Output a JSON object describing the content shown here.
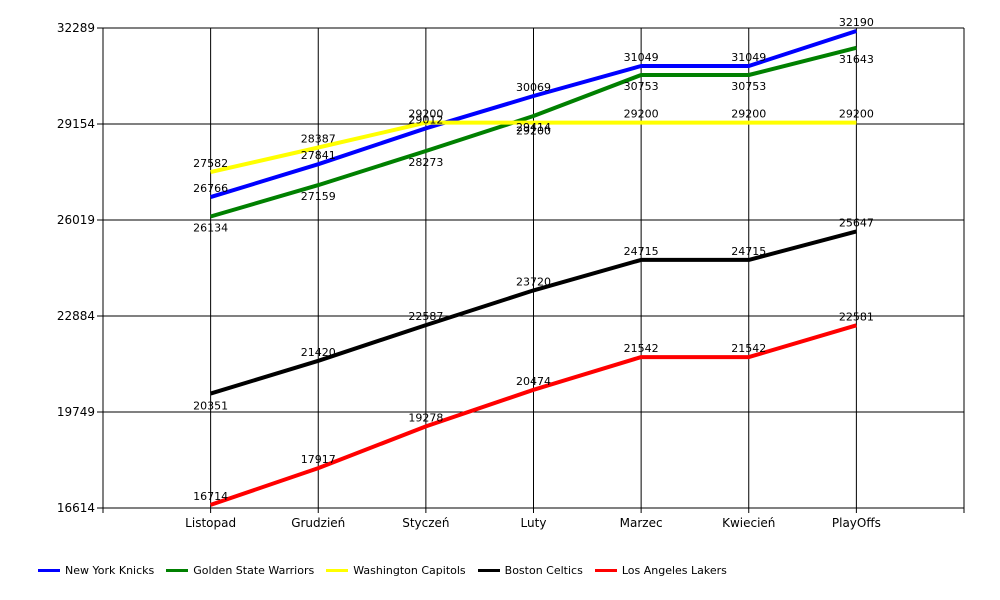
{
  "chart_data": {
    "type": "line",
    "categories": [
      "Listopad",
      "Grudzień",
      "Styczeń",
      "Luty",
      "Marzec",
      "Kwiecień",
      "PlayOffs"
    ],
    "y_ticks": [
      "16614",
      "19749",
      "22884",
      "26019",
      "29154",
      "32289"
    ],
    "ylim": [
      16614,
      32289
    ],
    "grid": true,
    "legend_position": "bottom-left",
    "series": [
      {
        "name": "New York Knicks",
        "color": "#0000ff",
        "values": [
          26766,
          27841,
          29012,
          30069,
          31049,
          31049,
          32190
        ],
        "labels": [
          "26766",
          "27841",
          "29012",
          "30069",
          "31049",
          "31049",
          "32190"
        ]
      },
      {
        "name": "Golden State Warriors",
        "color": "#008000",
        "values": [
          26134,
          27159,
          28273,
          29414,
          30753,
          30753,
          31643
        ],
        "labels": [
          "26134",
          "27159",
          "28273",
          "29414",
          "30753",
          "30753",
          "31643"
        ]
      },
      {
        "name": "Washington Capitols",
        "color": "#ffff00",
        "values": [
          27582,
          28387,
          29200,
          29200,
          29200,
          29200,
          29200
        ],
        "labels": [
          "27582",
          "28387",
          "29200",
          "29200",
          "29200",
          "29200",
          "29200"
        ]
      },
      {
        "name": "Boston Celtics",
        "color": "#000000",
        "values": [
          20351,
          21420,
          22587,
          23720,
          24715,
          24715,
          25647
        ],
        "labels": [
          "20351",
          "21420",
          "22587",
          "23720",
          "24715",
          "24715",
          "25647"
        ]
      },
      {
        "name": "Los Angeles Lakers",
        "color": "#ff0000",
        "values": [
          16714,
          17917,
          19278,
          20474,
          21542,
          21542,
          22581
        ],
        "labels": [
          "16714",
          "17917",
          "19278",
          "20474",
          "21542",
          "21542",
          "22581"
        ]
      }
    ]
  }
}
